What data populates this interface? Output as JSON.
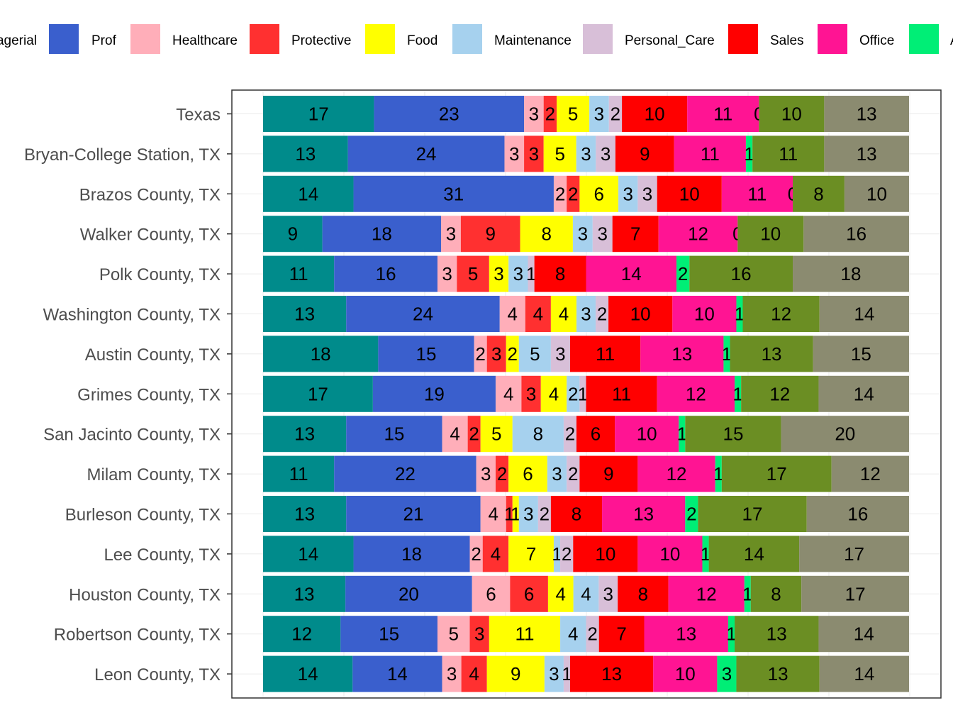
{
  "chart_data": {
    "type": "bar",
    "orientation": "horizontal",
    "stacked": true,
    "title": "",
    "xlabel": "",
    "ylabel": "",
    "grid": true,
    "legend_position": "top",
    "categories": [
      "Texas",
      "Bryan-College Station, TX",
      "Brazos County, TX",
      "Walker County, TX",
      "Polk County, TX",
      "Washington County, TX",
      "Austin County, TX",
      "Grimes County, TX",
      "San Jacinto County, TX",
      "Milam County, TX",
      "Burleson County, TX",
      "Lee County, TX",
      "Houston County, TX",
      "Robertson County, TX",
      "Leon County, TX"
    ],
    "legend_labels": [
      "agerial",
      "Prof",
      "Healthcare",
      "Protective",
      "Food",
      "Maintenance",
      "Personal_Care",
      "Sales",
      "Office",
      "A"
    ],
    "series": [
      {
        "name": "Managerial",
        "color": "#008B8B",
        "values": [
          17,
          13,
          14,
          9,
          11,
          13,
          18,
          17,
          13,
          11,
          13,
          14,
          13,
          12,
          14
        ]
      },
      {
        "name": "Prof",
        "color": "#3A5FCD",
        "values": [
          23,
          24,
          31,
          18,
          16,
          24,
          15,
          19,
          15,
          22,
          21,
          18,
          20,
          15,
          14
        ]
      },
      {
        "name": "Healthcare",
        "color": "#FFAEB9",
        "values": [
          3,
          3,
          2,
          3,
          3,
          4,
          2,
          4,
          4,
          3,
          4,
          2,
          6,
          5,
          3
        ]
      },
      {
        "name": "Protective",
        "color": "#FF3030",
        "values": [
          2,
          3,
          2,
          9,
          5,
          4,
          3,
          3,
          2,
          2,
          1,
          4,
          6,
          3,
          4
        ]
      },
      {
        "name": "Food",
        "color": "#FFFF00",
        "values": [
          5,
          5,
          6,
          8,
          3,
          4,
          2,
          4,
          5,
          6,
          1,
          7,
          4,
          11,
          9
        ]
      },
      {
        "name": "Maintenance",
        "color": "#A6D1EE",
        "values": [
          3,
          3,
          3,
          3,
          3,
          3,
          5,
          2,
          8,
          3,
          3,
          1,
          4,
          4,
          3
        ]
      },
      {
        "name": "Personal_Care",
        "color": "#D8BFD8",
        "values": [
          2,
          3,
          3,
          3,
          1,
          2,
          3,
          1,
          2,
          2,
          2,
          2,
          3,
          2,
          1
        ]
      },
      {
        "name": "Sales",
        "color": "#FF0000",
        "values": [
          10,
          9,
          10,
          7,
          8,
          10,
          11,
          11,
          6,
          9,
          8,
          10,
          8,
          7,
          13
        ]
      },
      {
        "name": "Office",
        "color": "#FF1493",
        "values": [
          11,
          11,
          11,
          12,
          14,
          10,
          13,
          12,
          10,
          12,
          13,
          10,
          12,
          13,
          10
        ]
      },
      {
        "name": "A",
        "color": "#00EE76",
        "values": [
          0,
          1,
          0,
          0,
          2,
          1,
          1,
          1,
          1,
          1,
          2,
          1,
          1,
          1,
          3
        ]
      },
      {
        "name": "",
        "color": "#6B8E23",
        "values": [
          10,
          11,
          8,
          10,
          16,
          12,
          13,
          12,
          15,
          17,
          17,
          14,
          8,
          13,
          13
        ]
      },
      {
        "name": "",
        "color": "#8B8B70",
        "values": [
          13,
          13,
          10,
          16,
          18,
          14,
          15,
          14,
          20,
          12,
          16,
          17,
          17,
          14,
          14
        ]
      }
    ]
  }
}
